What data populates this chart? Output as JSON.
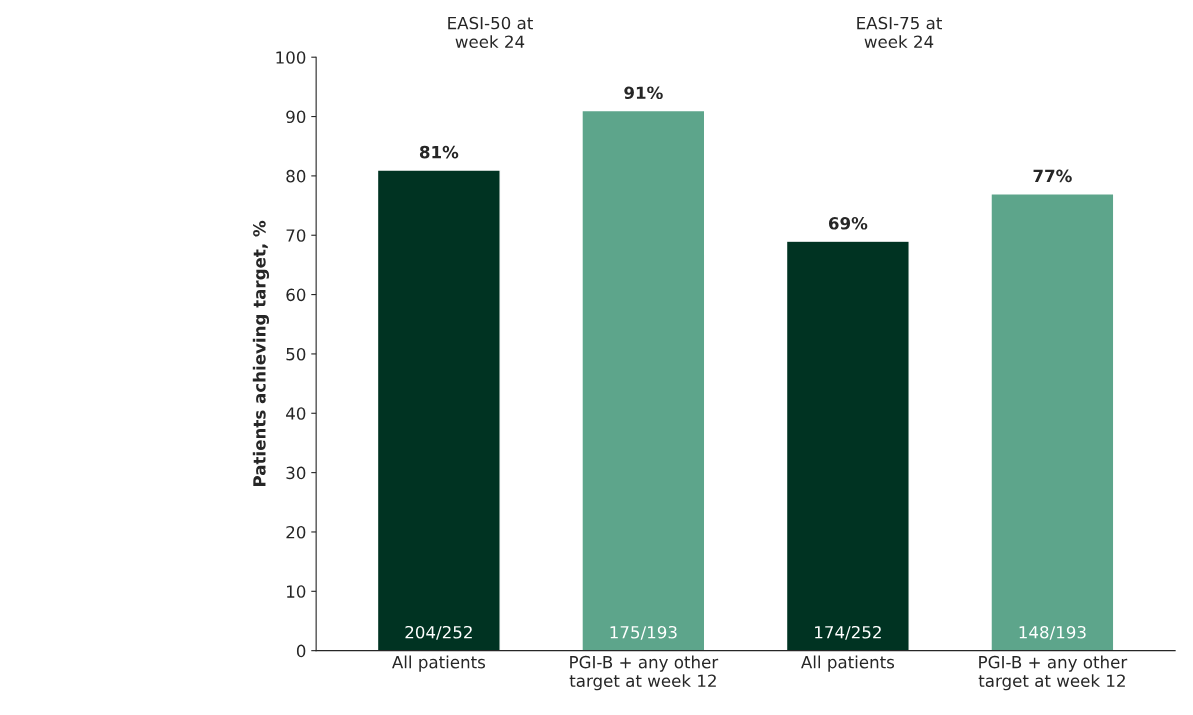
{
  "chart_data": {
    "type": "bar",
    "ylabel": "Patients achieving target, %",
    "categories": [
      "All patients",
      "PGI-B + any other\ntarget at week 12",
      "All patients",
      "PGI-B + any other\ntarget at week 12"
    ],
    "values": [
      81,
      91,
      69,
      77
    ],
    "colors": [
      "#003322",
      "#5da58b",
      "#003322",
      "#5da58b"
    ],
    "value_labels": [
      "81%",
      "91%",
      "69%",
      "77%"
    ],
    "annotations": [
      "EASI-50 at\nweek 24",
      "EASI-75 at\nweek 24",
      "204/252",
      "175/193",
      "174/252",
      "148/193"
    ],
    "ylim": [
      0,
      100
    ],
    "yticks": [
      0,
      10,
      20,
      30,
      40,
      50,
      60,
      70,
      80,
      90,
      100
    ],
    "grid": false,
    "legend": false
  }
}
